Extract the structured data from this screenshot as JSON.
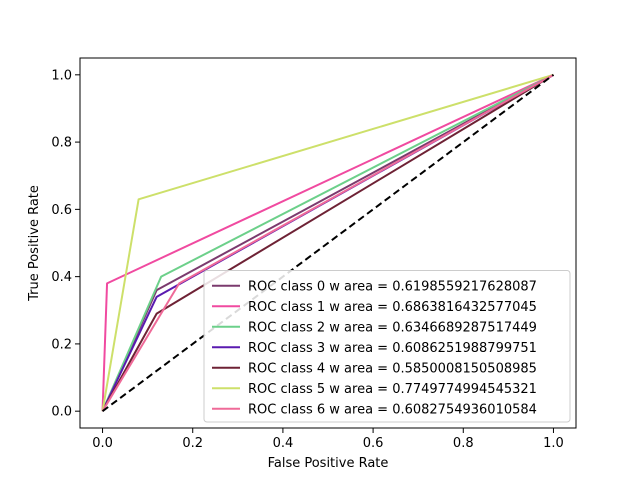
{
  "chart_data": {
    "type": "line",
    "title": "",
    "xlabel": "False Positive Rate",
    "ylabel": "True Positive Rate",
    "xlim": [
      -0.05,
      1.05
    ],
    "ylim": [
      -0.05,
      1.05
    ],
    "xticks": [
      0.0,
      0.2,
      0.4,
      0.6,
      0.8,
      1.0
    ],
    "yticks": [
      0.0,
      0.2,
      0.4,
      0.6,
      0.8,
      1.0
    ],
    "xtick_labels": [
      "0.0",
      "0.2",
      "0.4",
      "0.6",
      "0.8",
      "1.0"
    ],
    "ytick_labels": [
      "0.0",
      "0.2",
      "0.4",
      "0.6",
      "0.8",
      "1.0"
    ],
    "grid": false,
    "legend_position": "lower-right",
    "series": [
      {
        "name": "ROC class 0 w area = 0.6198559217628087",
        "color": "#7b3a6e",
        "x": [
          0,
          0.12,
          1
        ],
        "y": [
          0,
          0.36,
          1
        ]
      },
      {
        "name": "ROC class 1 w area = 0.6863816432577045",
        "color": "#f04aa0",
        "x": [
          0,
          0.01,
          1
        ],
        "y": [
          0,
          0.38,
          1
        ]
      },
      {
        "name": "ROC class 2 w area = 0.6346689287517449",
        "color": "#6cd08a",
        "x": [
          0,
          0.13,
          1
        ],
        "y": [
          0,
          0.4,
          1
        ]
      },
      {
        "name": "ROC class 3 w area = 0.6086251988799751",
        "color": "#5a1ab0",
        "x": [
          0,
          0.12,
          1
        ],
        "y": [
          0,
          0.34,
          1
        ]
      },
      {
        "name": "ROC class 4 w area = 0.5850008150508985",
        "color": "#6e2235",
        "x": [
          0,
          0.12,
          1
        ],
        "y": [
          0,
          0.29,
          1
        ]
      },
      {
        "name": "ROC class 5 w area = 0.7749774994545321",
        "color": "#cde06a",
        "x": [
          0,
          0.08,
          1
        ],
        "y": [
          0,
          0.63,
          1
        ]
      },
      {
        "name": "ROC class 6 w area = 0.6082754936010584",
        "color": "#ef6a98",
        "x": [
          0,
          0.17,
          1
        ],
        "y": [
          0,
          0.38,
          1
        ]
      }
    ],
    "reference_line": {
      "x": [
        0,
        1
      ],
      "y": [
        0,
        1
      ],
      "color": "#000000",
      "style": "dashed"
    }
  }
}
